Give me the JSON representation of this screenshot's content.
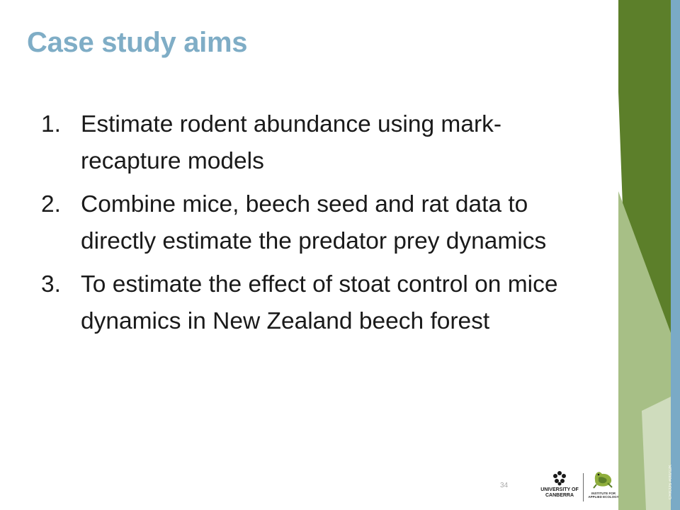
{
  "slide": {
    "title": "Case study aims",
    "aims": [
      {
        "number": "1.",
        "text": "Estimate rodent abundance using mark-recapture models"
      },
      {
        "number": "2.",
        "text": "Combine mice, beech seed and rat data to directly estimate the predator prey dynamics"
      },
      {
        "number": "3.",
        "text": "To estimate the effect of stoat control on mice dynamics in New Zealand beech forest"
      }
    ],
    "page_number": "34"
  },
  "footer": {
    "university_logo_line1": "UNIVERSITY OF",
    "university_logo_line2": "CANBERRA",
    "institute_logo_line1": "INSTITUTE FOR",
    "institute_logo_line2": "APPLIED ECOLOGY",
    "cricos": "CRICOS #00212K"
  },
  "colors": {
    "title": "#7fadc6",
    "green_dark": "#5c7f2a",
    "green_light": "#a7bf86",
    "side_band": "#7aaac6"
  },
  "icons": [
    "university-of-canberra-logo",
    "institute-for-applied-ecology-logo"
  ]
}
